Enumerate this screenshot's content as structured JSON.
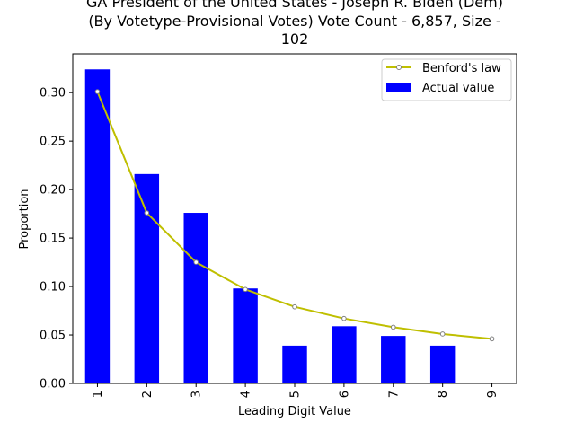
{
  "chart_data": {
    "type": "bar",
    "title_lines": [
      "GA President of the United States - Joseph R. Biden (Dem)",
      "(By Votetype-Provisional Votes) Vote Count - 6,857, Size -",
      "102"
    ],
    "xlabel": "Leading Digit Value",
    "ylabel": "Proportion",
    "categories": [
      "1",
      "2",
      "3",
      "4",
      "5",
      "6",
      "7",
      "8",
      "9"
    ],
    "ylim": [
      0,
      0.34
    ],
    "yticks": [
      0.0,
      0.05,
      0.1,
      0.15,
      0.2,
      0.25,
      0.3
    ],
    "ytick_labels": [
      "0.00",
      "0.05",
      "0.10",
      "0.15",
      "0.20",
      "0.25",
      "0.30"
    ],
    "series": [
      {
        "name": "Actual value",
        "kind": "bar",
        "color": "#0000ff",
        "values": [
          0.324,
          0.216,
          0.176,
          0.098,
          0.039,
          0.059,
          0.049,
          0.039,
          0.0
        ]
      },
      {
        "name": "Benford's law",
        "kind": "line",
        "color": "#bfbf00",
        "values": [
          0.301,
          0.176,
          0.125,
          0.097,
          0.079,
          0.067,
          0.058,
          0.051,
          0.046
        ]
      }
    ],
    "legend_position": "top-right",
    "grid": false
  }
}
